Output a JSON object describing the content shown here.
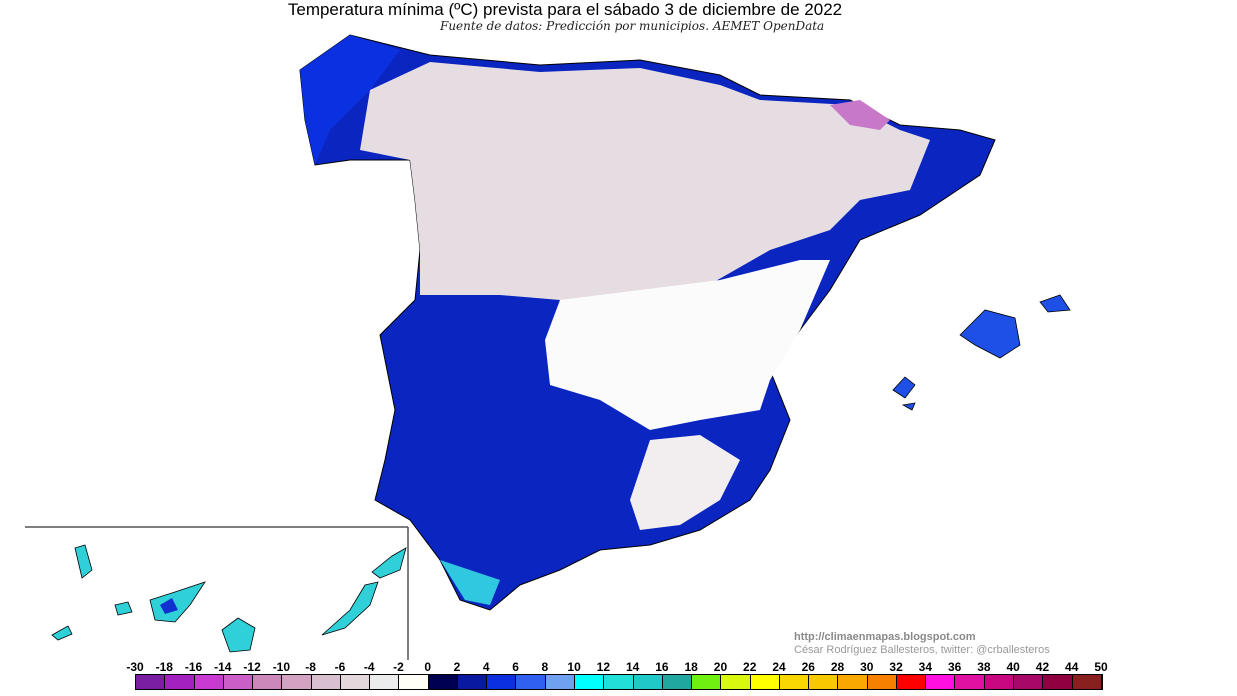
{
  "title": "Temperatura mínima (ºC) prevista para el sábado 3 de diciembre de 2022",
  "subtitle": "Fuente de datos: Predicción por municipios. AEMET OpenData",
  "credits": {
    "url": "http://climaenmapas.blogspot.com",
    "author": "César Rodríguez Ballesteros, twitter: @crballesteros"
  },
  "legend": {
    "labels": [
      "-30",
      "-18",
      "-16",
      "-14",
      "-12",
      "-10",
      "-8",
      "-6",
      "-4",
      "-2",
      "0",
      "2",
      "4",
      "6",
      "8",
      "10",
      "12",
      "14",
      "16",
      "18",
      "20",
      "22",
      "24",
      "26",
      "28",
      "30",
      "32",
      "34",
      "36",
      "38",
      "40",
      "42",
      "44",
      "50"
    ],
    "colors": [
      "#7b1fa2",
      "#a322bf",
      "#c93ad3",
      "#cc5ec8",
      "#cc88bb",
      "#d4a2c2",
      "#d8c0d0",
      "#e4d8dc",
      "#ececec",
      "#fffff8",
      "#000050",
      "#0a1aa0",
      "#0a30e0",
      "#3060f0",
      "#70a0f0",
      "#00ffff",
      "#20e0d8",
      "#20c8c8",
      "#20a8a0",
      "#70f010",
      "#d8f810",
      "#ffff00",
      "#f8d800",
      "#f8c800",
      "#f8a800",
      "#f88000",
      "#ff0000",
      "#ff10e0",
      "#e010a0",
      "#c80880",
      "#a80868",
      "#900040",
      "#882020"
    ]
  },
  "map_colors": {
    "cold_north": "#e6dde2",
    "mild_center": "#fbfbfb",
    "coast_blue": "#0a30e0",
    "dark_blue": "#0a1aa0",
    "south_cyan": "#20d8e0",
    "pyrenees": "#c060c8"
  }
}
